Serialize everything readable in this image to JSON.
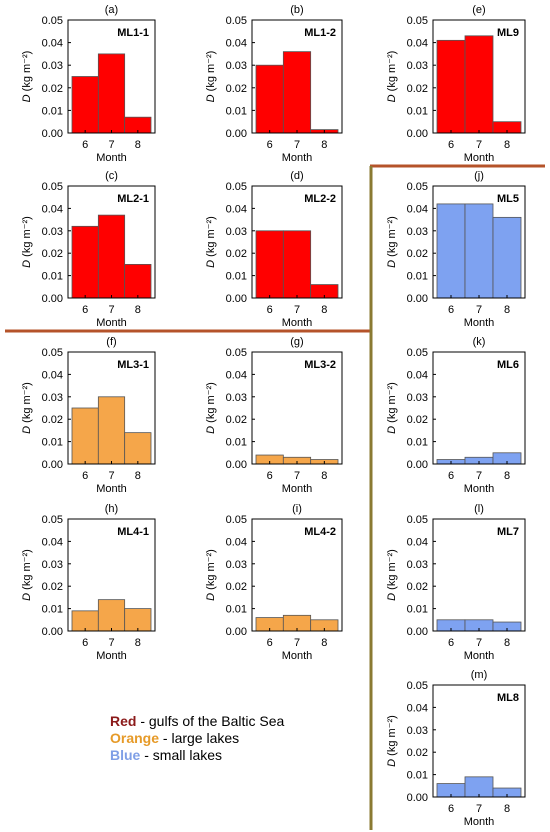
{
  "colors": {
    "red": "#ff0000",
    "orange": "#f5a64a",
    "blue": "#7ea2f1",
    "divider_brown": "#b5532a",
    "divider_olive": "#8a7a32"
  },
  "legend": {
    "red": {
      "key": "Red",
      "text": " - gulfs of the Baltic Sea"
    },
    "orange": {
      "key": "Orange",
      "text": " - large lakes"
    },
    "blue": {
      "key": "Blue",
      "text": " - small lakes"
    }
  },
  "chart_data": [
    {
      "panel": "(a)",
      "title": "ML1-1",
      "type": "bar",
      "color": "red",
      "categories": [
        "6",
        "7",
        "8"
      ],
      "values": [
        0.025,
        0.035,
        0.007
      ],
      "xlabel": "Month",
      "ylabel": "D (kg m⁻²)",
      "ylim": [
        0,
        0.05
      ],
      "yticks": [
        "0.00",
        "0.01",
        "0.02",
        "0.03",
        "0.04",
        "0.05"
      ]
    },
    {
      "panel": "(b)",
      "title": "ML1-2",
      "type": "bar",
      "color": "red",
      "categories": [
        "6",
        "7",
        "8"
      ],
      "values": [
        0.03,
        0.036,
        0.0015
      ],
      "xlabel": "Month",
      "ylabel": "D (kg m⁻²)",
      "ylim": [
        0,
        0.05
      ],
      "yticks": [
        "0.00",
        "0.01",
        "0.02",
        "0.03",
        "0.04",
        "0.05"
      ]
    },
    {
      "panel": "(e)",
      "title": "ML9",
      "type": "bar",
      "color": "red",
      "categories": [
        "6",
        "7",
        "8"
      ],
      "values": [
        0.041,
        0.043,
        0.005
      ],
      "xlabel": "Month",
      "ylabel": "D (kg m⁻²)",
      "ylim": [
        0,
        0.05
      ],
      "yticks": [
        "0.00",
        "0.01",
        "0.02",
        "0.03",
        "0.04",
        "0.05"
      ]
    },
    {
      "panel": "(c)",
      "title": "ML2-1",
      "type": "bar",
      "color": "red",
      "categories": [
        "6",
        "7",
        "8"
      ],
      "values": [
        0.032,
        0.037,
        0.015
      ],
      "xlabel": "Month",
      "ylabel": "D (kg m⁻²)",
      "ylim": [
        0,
        0.05
      ],
      "yticks": [
        "0.00",
        "0.01",
        "0.02",
        "0.03",
        "0.04",
        "0.05"
      ]
    },
    {
      "panel": "(d)",
      "title": "ML2-2",
      "type": "bar",
      "color": "red",
      "categories": [
        "6",
        "7",
        "8"
      ],
      "values": [
        0.03,
        0.03,
        0.006
      ],
      "xlabel": "Month",
      "ylabel": "D (kg m⁻²)",
      "ylim": [
        0,
        0.05
      ],
      "yticks": [
        "0.00",
        "0.01",
        "0.02",
        "0.03",
        "0.04",
        "0.05"
      ]
    },
    {
      "panel": "(j)",
      "title": "ML5",
      "type": "bar",
      "color": "blue",
      "categories": [
        "6",
        "7",
        "8"
      ],
      "values": [
        0.042,
        0.042,
        0.036
      ],
      "xlabel": "Month",
      "ylabel": "D (kg m⁻²)",
      "ylim": [
        0,
        0.05
      ],
      "yticks": [
        "0.00",
        "0.01",
        "0.02",
        "0.03",
        "0.04",
        "0.05"
      ]
    },
    {
      "panel": "(f)",
      "title": "ML3-1",
      "type": "bar",
      "color": "orange",
      "categories": [
        "6",
        "7",
        "8"
      ],
      "values": [
        0.025,
        0.03,
        0.014
      ],
      "xlabel": "Month",
      "ylabel": "D (kg m⁻²)",
      "ylim": [
        0,
        0.05
      ],
      "yticks": [
        "0.00",
        "0.01",
        "0.02",
        "0.03",
        "0.04",
        "0.05"
      ]
    },
    {
      "panel": "(g)",
      "title": "ML3-2",
      "type": "bar",
      "color": "orange",
      "categories": [
        "6",
        "7",
        "8"
      ],
      "values": [
        0.004,
        0.003,
        0.002
      ],
      "xlabel": "Month",
      "ylabel": "D (kg m⁻²)",
      "ylim": [
        0,
        0.05
      ],
      "yticks": [
        "0.00",
        "0.01",
        "0.02",
        "0.03",
        "0.04",
        "0.05"
      ]
    },
    {
      "panel": "(k)",
      "title": "ML6",
      "type": "bar",
      "color": "blue",
      "categories": [
        "6",
        "7",
        "8"
      ],
      "values": [
        0.002,
        0.003,
        0.005
      ],
      "xlabel": "Month",
      "ylabel": "D (kg m⁻²)",
      "ylim": [
        0,
        0.05
      ],
      "yticks": [
        "0.00",
        "0.01",
        "0.02",
        "0.03",
        "0.04",
        "0.05"
      ]
    },
    {
      "panel": "(h)",
      "title": "ML4-1",
      "type": "bar",
      "color": "orange",
      "categories": [
        "6",
        "7",
        "8"
      ],
      "values": [
        0.009,
        0.014,
        0.01
      ],
      "xlabel": "Month",
      "ylabel": "D (kg m⁻²)",
      "ylim": [
        0,
        0.05
      ],
      "yticks": [
        "0.00",
        "0.01",
        "0.02",
        "0.03",
        "0.04",
        "0.05"
      ]
    },
    {
      "panel": "(i)",
      "title": "ML4-2",
      "type": "bar",
      "color": "orange",
      "categories": [
        "6",
        "7",
        "8"
      ],
      "values": [
        0.006,
        0.007,
        0.005
      ],
      "xlabel": "Month",
      "ylabel": "D (kg m⁻²)",
      "ylim": [
        0,
        0.05
      ],
      "yticks": [
        "0.00",
        "0.01",
        "0.02",
        "0.03",
        "0.04",
        "0.05"
      ]
    },
    {
      "panel": "(l)",
      "title": "ML7",
      "type": "bar",
      "color": "blue",
      "categories": [
        "6",
        "7",
        "8"
      ],
      "values": [
        0.005,
        0.005,
        0.004
      ],
      "xlabel": "Month",
      "ylabel": "D (kg m⁻²)",
      "ylim": [
        0,
        0.05
      ],
      "yticks": [
        "0.00",
        "0.01",
        "0.02",
        "0.03",
        "0.04",
        "0.05"
      ]
    },
    {
      "panel": "(m)",
      "title": "ML8",
      "type": "bar",
      "color": "blue",
      "categories": [
        "6",
        "7",
        "8"
      ],
      "values": [
        0.006,
        0.009,
        0.004
      ],
      "xlabel": "Month",
      "ylabel": "D (kg m⁻²)",
      "ylim": [
        0,
        0.05
      ],
      "yticks": [
        "0.00",
        "0.01",
        "0.02",
        "0.03",
        "0.04",
        "0.05"
      ]
    }
  ]
}
